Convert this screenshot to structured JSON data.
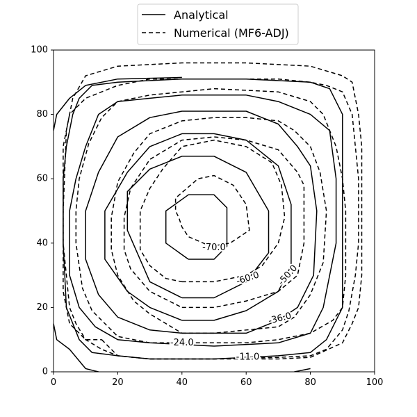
{
  "chart_data": {
    "type": "contour",
    "title": "",
    "xlabel": "",
    "ylabel": "",
    "xlim": [
      0,
      100
    ],
    "ylim": [
      0,
      100
    ],
    "xticks": [
      "0",
      "20",
      "40",
      "60",
      "80",
      "100"
    ],
    "yticks": [
      "0",
      "20",
      "40",
      "60",
      "80",
      "100"
    ],
    "grid": false,
    "legend": {
      "placement": "top-center, outside plot",
      "entries": [
        {
          "label": "Analytical",
          "style": "solid"
        },
        {
          "label": "Numerical (MF6-ADJ)",
          "style": "dashed"
        }
      ]
    },
    "contour_levels": [
      -70.0,
      -60.0,
      -50.0,
      -36.0,
      -24.0,
      -11.0
    ],
    "contour_labels": [
      {
        "text": "-70.0",
        "x": 50,
        "y": 38.5,
        "rotation": 0
      },
      {
        "text": "-60.0",
        "x": 60.5,
        "y": 29,
        "rotation": -18
      },
      {
        "text": "-50.0",
        "x": 73,
        "y": 30,
        "rotation": -48
      },
      {
        "text": "-36.0",
        "x": 70.5,
        "y": 16.5,
        "rotation": -14
      },
      {
        "text": "-24.0",
        "x": 40,
        "y": 9,
        "rotation": 0
      },
      {
        "text": "-11.0",
        "x": 60.5,
        "y": 4.5,
        "rotation": 0
      }
    ],
    "series": [
      {
        "name": "Analytical",
        "style": "solid",
        "color": "#000000",
        "contours": [
          [
            [
              42,
              35
            ],
            [
              50,
              35
            ],
            [
              54,
              39
            ],
            [
              54,
              51
            ],
            [
              50,
              55
            ],
            [
              42,
              55
            ],
            [
              35,
              50
            ],
            [
              35,
              40
            ],
            [
              42,
              35
            ]
          ],
          [
            [
              40,
              23
            ],
            [
              50,
              23
            ],
            [
              60,
              28
            ],
            [
              67,
              37
            ],
            [
              67,
              50
            ],
            [
              60,
              62
            ],
            [
              50,
              67
            ],
            [
              40,
              67
            ],
            [
              30,
              63
            ],
            [
              23,
              56
            ],
            [
              23,
              44
            ],
            [
              30,
              28
            ],
            [
              40,
              23
            ]
          ],
          [
            [
              40,
              16
            ],
            [
              50,
              16
            ],
            [
              60,
              19
            ],
            [
              70,
              25
            ],
            [
              74,
              33
            ],
            [
              74,
              52
            ],
            [
              70,
              64
            ],
            [
              60,
              72
            ],
            [
              50,
              74
            ],
            [
              40,
              74
            ],
            [
              30,
              70
            ],
            [
              23,
              62
            ],
            [
              16,
              50
            ],
            [
              16,
              35
            ],
            [
              23,
              25
            ],
            [
              30,
              20
            ],
            [
              40,
              16
            ]
          ],
          [
            [
              40,
              12
            ],
            [
              60,
              12
            ],
            [
              70,
              16
            ],
            [
              76,
              20
            ],
            [
              81,
              30
            ],
            [
              82,
              50
            ],
            [
              80,
              64
            ],
            [
              76,
              70
            ],
            [
              70,
              77
            ],
            [
              60,
              81
            ],
            [
              40,
              81
            ],
            [
              30,
              79
            ],
            [
              20,
              73
            ],
            [
              14,
              62
            ],
            [
              10,
              50
            ],
            [
              10,
              35
            ],
            [
              14,
              24
            ],
            [
              20,
              17
            ],
            [
              30,
              13
            ],
            [
              40,
              12
            ]
          ],
          [
            [
              50,
              8
            ],
            [
              70,
              9
            ],
            [
              80,
              12
            ],
            [
              84,
              20
            ],
            [
              88,
              40
            ],
            [
              88,
              60
            ],
            [
              86,
              75
            ],
            [
              80,
              80
            ],
            [
              70,
              84
            ],
            [
              60,
              86
            ],
            [
              40,
              86
            ],
            [
              30,
              85
            ],
            [
              20,
              84
            ],
            [
              14,
              80
            ],
            [
              10,
              70
            ],
            [
              7,
              60
            ],
            [
              5,
              50
            ],
            [
              5,
              30
            ],
            [
              8,
              20
            ],
            [
              13,
              14
            ],
            [
              20,
              10
            ],
            [
              30,
              9
            ],
            [
              50,
              8
            ]
          ],
          [
            [
              30,
              4
            ],
            [
              50,
              4
            ],
            [
              70,
              5
            ],
            [
              80,
              6
            ],
            [
              85,
              10
            ],
            [
              90,
              20
            ],
            [
              90,
              60
            ],
            [
              90,
              80
            ],
            [
              86,
              88
            ],
            [
              80,
              90
            ],
            [
              60,
              91
            ],
            [
              40,
              91
            ],
            [
              20,
              90
            ],
            [
              12,
              89
            ],
            [
              8,
              85
            ],
            [
              6,
              80
            ],
            [
              4,
              70
            ],
            [
              3,
              60
            ],
            [
              3,
              40
            ],
            [
              4,
              20
            ],
            [
              8,
              10
            ],
            [
              12,
              6
            ],
            [
              20,
              5
            ],
            [
              30,
              4
            ]
          ],
          [
            [
              0,
              15
            ],
            [
              1,
              10
            ],
            [
              5,
              7
            ],
            [
              10,
              1
            ],
            [
              14,
              0
            ]
          ],
          [
            [
              0,
              75
            ],
            [
              1,
              80
            ],
            [
              5,
              85
            ],
            [
              10,
              89
            ],
            [
              20,
              91
            ],
            [
              40,
              91.5
            ]
          ],
          [
            [
              75,
              0
            ],
            [
              80,
              1
            ]
          ]
        ]
      },
      {
        "name": "Numerical (MF6-ADJ)",
        "style": "dashed",
        "color": "#000000",
        "contours": [
          [
            [
              49,
              39
            ],
            [
              55,
              40
            ],
            [
              61,
              44
            ],
            [
              60,
              52
            ],
            [
              56,
              58
            ],
            [
              50,
              61
            ],
            [
              45,
              60
            ],
            [
              38,
              54
            ],
            [
              38,
              50
            ],
            [
              39,
              48
            ],
            [
              40,
              45
            ],
            [
              42,
              42
            ],
            [
              49,
              39
            ]
          ],
          [
            [
              40,
              28
            ],
            [
              50,
              28
            ],
            [
              60,
              30
            ],
            [
              65,
              33
            ],
            [
              70,
              40
            ],
            [
              72,
              48
            ],
            [
              71,
              58
            ],
            [
              68,
              65
            ],
            [
              60,
              70
            ],
            [
              50,
              72
            ],
            [
              40,
              70
            ],
            [
              34,
              63
            ],
            [
              30,
              57
            ],
            [
              27,
              50
            ],
            [
              27,
              38
            ],
            [
              30,
              33
            ],
            [
              35,
              29
            ],
            [
              40,
              28
            ]
          ],
          [
            [
              40,
              20
            ],
            [
              50,
              20
            ],
            [
              60,
              22
            ],
            [
              70,
              25
            ],
            [
              76,
              30
            ],
            [
              78,
              40
            ],
            [
              78,
              50
            ],
            [
              78,
              58
            ],
            [
              76,
              62
            ],
            [
              70,
              69
            ],
            [
              60,
              72
            ],
            [
              50,
              73
            ],
            [
              40,
              72
            ],
            [
              30,
              66
            ],
            [
              24,
              57
            ],
            [
              22,
              48
            ],
            [
              22,
              38
            ],
            [
              24,
              32
            ],
            [
              30,
              25
            ],
            [
              40,
              20
            ]
          ],
          [
            [
              40,
              12
            ],
            [
              50,
              12
            ],
            [
              70,
              14
            ],
            [
              75,
              17
            ],
            [
              80,
              24
            ],
            [
              84,
              34
            ],
            [
              85,
              50
            ],
            [
              83,
              62
            ],
            [
              80,
              70
            ],
            [
              75,
              75
            ],
            [
              70,
              78
            ],
            [
              60,
              79
            ],
            [
              50,
              79
            ],
            [
              40,
              78
            ],
            [
              30,
              74
            ],
            [
              25,
              68
            ],
            [
              20,
              59
            ],
            [
              18,
              48
            ],
            [
              18,
              38
            ],
            [
              20,
              30
            ],
            [
              25,
              22
            ],
            [
              30,
              18
            ],
            [
              40,
              12
            ]
          ],
          [
            [
              40,
              9
            ],
            [
              60,
              9
            ],
            [
              70,
              10
            ],
            [
              80,
              12
            ],
            [
              87,
              16
            ],
            [
              90,
              20
            ],
            [
              91,
              30
            ],
            [
              91,
              50
            ],
            [
              90,
              60
            ],
            [
              88,
              70
            ],
            [
              84,
              80
            ],
            [
              80,
              84
            ],
            [
              70,
              87
            ],
            [
              50,
              88
            ],
            [
              40,
              87
            ],
            [
              30,
              86
            ],
            [
              20,
              84
            ],
            [
              15,
              79
            ],
            [
              11,
              71
            ],
            [
              8,
              60
            ],
            [
              7,
              50
            ],
            [
              7,
              40
            ],
            [
              9,
              26
            ],
            [
              12,
              19
            ],
            [
              20,
              11
            ],
            [
              30,
              9
            ],
            [
              40,
              9
            ]
          ],
          [
            [
              30,
              4
            ],
            [
              50,
              4
            ],
            [
              70,
              4.5
            ],
            [
              80,
              5
            ],
            [
              85,
              7
            ],
            [
              90,
              13
            ],
            [
              92,
              19
            ],
            [
              94,
              30
            ],
            [
              95,
              40
            ],
            [
              95,
              60
            ],
            [
              94,
              70
            ],
            [
              93,
              80
            ],
            [
              90,
              87
            ],
            [
              85,
              89
            ],
            [
              80,
              90
            ],
            [
              70,
              91
            ],
            [
              50,
              91
            ],
            [
              30,
              91
            ],
            [
              20,
              89
            ],
            [
              10,
              85
            ],
            [
              5,
              80
            ],
            [
              3,
              70
            ],
            [
              3,
              50
            ],
            [
              3,
              40
            ],
            [
              4,
              30
            ],
            [
              5,
              20
            ],
            [
              7,
              15
            ],
            [
              10,
              10
            ],
            [
              15,
              7
            ],
            [
              20,
              5
            ],
            [
              30,
              4
            ]
          ],
          [
            [
              15,
              10
            ],
            [
              20,
              5
            ],
            [
              30,
              4
            ],
            [
              50,
              4
            ],
            [
              70,
              4
            ],
            [
              80,
              4.5
            ],
            [
              90,
              9
            ],
            [
              93,
              15
            ],
            [
              95,
              20
            ],
            [
              96,
              30
            ],
            [
              96,
              50
            ],
            [
              96,
              70
            ],
            [
              95,
              80
            ],
            [
              93,
              90
            ],
            [
              90,
              92
            ],
            [
              80,
              95
            ],
            [
              60,
              96
            ],
            [
              40,
              96
            ],
            [
              20,
              95
            ],
            [
              10,
              92
            ],
            [
              6,
              85
            ],
            [
              4,
              75
            ],
            [
              3,
              50
            ],
            [
              3,
              25
            ],
            [
              5,
              15
            ],
            [
              10,
              10
            ],
            [
              15,
              10
            ]
          ]
        ]
      }
    ]
  }
}
